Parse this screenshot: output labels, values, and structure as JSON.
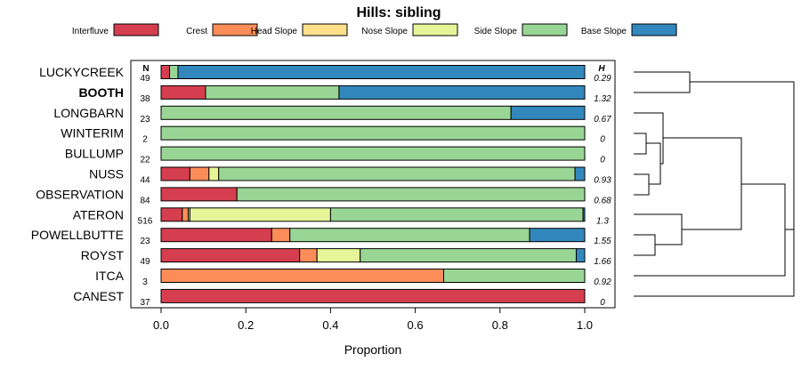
{
  "chart_data": {
    "type": "stacked-bar-horizontal",
    "title": "Hills: sibling",
    "xlabel": "Proportion",
    "xlim": [
      0,
      1
    ],
    "xticks": [
      "0.0",
      "0.2",
      "0.4",
      "0.6",
      "0.8",
      "1.0"
    ],
    "n_label": "N",
    "h_label": "H",
    "legend": [
      {
        "name": "Interfluve",
        "color": "#d53e4f"
      },
      {
        "name": "Crest",
        "color": "#fc8d59"
      },
      {
        "name": "Head Slope",
        "color": "#fee08b"
      },
      {
        "name": "Nose Slope",
        "color": "#e6f598"
      },
      {
        "name": "Side Slope",
        "color": "#99d594"
      },
      {
        "name": "Base Slope",
        "color": "#3288bd"
      }
    ],
    "rows": [
      {
        "name": "LUCKYCREEK",
        "n": "49",
        "h": "0.29",
        "bold": false,
        "values": [
          0.02,
          0,
          0,
          0,
          0.02,
          0.96
        ]
      },
      {
        "name": "BOOTH",
        "n": "38",
        "h": "1.32",
        "bold": true,
        "values": [
          0.105,
          0,
          0,
          0,
          0.315,
          0.58
        ]
      },
      {
        "name": "LONGBARN",
        "n": "23",
        "h": "0.67",
        "bold": false,
        "values": [
          0,
          0,
          0,
          0,
          0.826,
          0.174
        ]
      },
      {
        "name": "WINTERIM",
        "n": "2",
        "h": "0",
        "bold": false,
        "values": [
          0,
          0,
          0,
          0,
          1,
          0
        ]
      },
      {
        "name": "BULLUMP",
        "n": "22",
        "h": "0",
        "bold": false,
        "values": [
          0,
          0,
          0,
          0,
          1,
          0
        ]
      },
      {
        "name": "NUSS",
        "n": "44",
        "h": "0.93",
        "bold": false,
        "values": [
          0.068,
          0.045,
          0,
          0.023,
          0.841,
          0.023
        ]
      },
      {
        "name": "OBSERVATION",
        "n": "84",
        "h": "0.68",
        "bold": false,
        "values": [
          0.179,
          0,
          0,
          0,
          0.821,
          0
        ]
      },
      {
        "name": "ATERON",
        "n": "516",
        "h": "1.3",
        "bold": false,
        "values": [
          0.05,
          0.014,
          0.004,
          0.332,
          0.596,
          0.004
        ]
      },
      {
        "name": "POWELLBUTTE",
        "n": "23",
        "h": "1.55",
        "bold": false,
        "values": [
          0.261,
          0.043,
          0,
          0,
          0.566,
          0.13
        ]
      },
      {
        "name": "ROYST",
        "n": "49",
        "h": "1.66",
        "bold": false,
        "values": [
          0.327,
          0.041,
          0,
          0.102,
          0.51,
          0.02
        ]
      },
      {
        "name": "ITCA",
        "n": "3",
        "h": "0.92",
        "bold": false,
        "values": [
          0,
          0.667,
          0,
          0,
          0.333,
          0
        ]
      },
      {
        "name": "CANEST",
        "n": "37",
        "h": "0",
        "bold": false,
        "values": [
          1,
          0,
          0,
          0,
          0,
          0
        ]
      }
    ]
  }
}
